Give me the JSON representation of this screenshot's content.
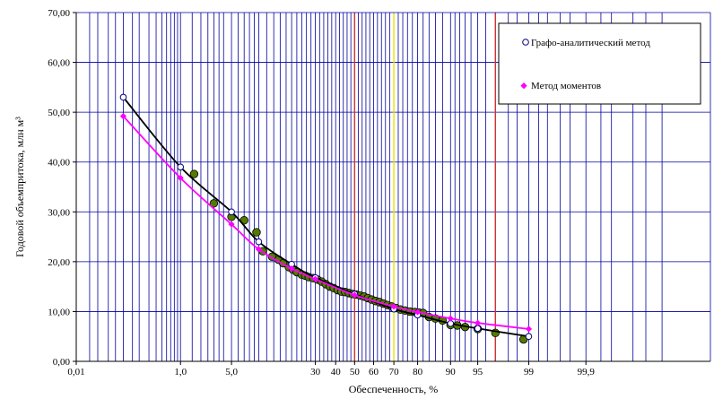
{
  "chart_data": {
    "type": "scatter",
    "xlabel": "Обеспеченность, %",
    "ylabel": "Годовой объемпритока, млн м³",
    "ylim": [
      0,
      70
    ],
    "y_ticks": [
      "0,00",
      "10,00",
      "20,00",
      "30,00",
      "40,00",
      "50,00",
      "60,00",
      "70,00"
    ],
    "x_scale": "probability",
    "x_ticks": [
      {
        "p": 0.01,
        "label": "0,01"
      },
      {
        "p": 1.0,
        "label": "1,0"
      },
      {
        "p": 5.0,
        "label": "5,0"
      },
      {
        "p": 30,
        "label": "30"
      },
      {
        "p": 40,
        "label": "40"
      },
      {
        "p": 50,
        "label": "50"
      },
      {
        "p": 60,
        "label": "60"
      },
      {
        "p": 70,
        "label": "70"
      },
      {
        "p": 80,
        "label": "80"
      },
      {
        "p": 90,
        "label": "90"
      },
      {
        "p": 95,
        "label": "95"
      },
      {
        "p": 99,
        "label": "99"
      },
      {
        "p": 99.9,
        "label": "99,9"
      }
    ],
    "grid": true,
    "special_lines": [
      {
        "p": 50,
        "color": "#cc3333"
      },
      {
        "p": 70,
        "color": "#e6e600"
      },
      {
        "p": 97,
        "color": "#cc3333"
      }
    ],
    "legend_position": "top-right",
    "series": [
      {
        "name": "Графо-аналитический метод",
        "kind": "curve",
        "color": "#000000",
        "marker": "open-circle",
        "marker_color": "#000080",
        "points": [
          [
            0.1,
            53.0
          ],
          [
            1,
            39.0
          ],
          [
            5,
            30.0
          ],
          [
            10,
            24.0
          ],
          [
            20,
            19.5
          ],
          [
            30,
            16.8
          ],
          [
            50,
            13.5
          ],
          [
            70,
            10.5
          ],
          [
            80,
            9.3
          ],
          [
            90,
            7.6
          ],
          [
            95,
            6.6
          ],
          [
            99,
            5.0
          ]
        ]
      },
      {
        "name": "Метод моментов",
        "kind": "curve",
        "color": "#ff00ff",
        "marker": "diamond",
        "marker_color": "#ff00ff",
        "points": [
          [
            0.1,
            49.2
          ],
          [
            1,
            36.8
          ],
          [
            5,
            27.5
          ],
          [
            10,
            22.5
          ],
          [
            20,
            18.6
          ],
          [
            30,
            16.5
          ],
          [
            50,
            13.3
          ],
          [
            70,
            11.0
          ],
          [
            80,
            9.9
          ],
          [
            90,
            8.6
          ],
          [
            95,
            7.7
          ],
          [
            99,
            6.5
          ]
        ]
      },
      {
        "name": "",
        "kind": "points",
        "color": "#557a00",
        "stroke": "#000000",
        "points": [
          [
            1.6,
            37.6
          ],
          [
            3.0,
            31.7
          ],
          [
            5.0,
            29.0
          ],
          [
            7.0,
            28.3
          ],
          [
            9.5,
            25.9
          ],
          [
            11.0,
            22.1
          ],
          [
            13.5,
            21.0
          ],
          [
            15.5,
            20.4
          ],
          [
            17.0,
            19.7
          ],
          [
            19.0,
            18.9
          ],
          [
            20.5,
            18.4
          ],
          [
            22.0,
            17.9
          ],
          [
            24.0,
            17.4
          ],
          [
            25.5,
            17.2
          ],
          [
            27.0,
            16.9
          ],
          [
            29.0,
            16.7
          ],
          [
            31.0,
            16.4
          ],
          [
            33.0,
            16.0
          ],
          [
            35.0,
            15.5
          ],
          [
            37.0,
            15.0
          ],
          [
            39.0,
            14.7
          ],
          [
            41.0,
            14.3
          ],
          [
            43.0,
            14.0
          ],
          [
            45.0,
            13.9
          ],
          [
            47.0,
            13.7
          ],
          [
            49.0,
            13.5
          ],
          [
            51.0,
            13.4
          ],
          [
            53.0,
            13.2
          ],
          [
            55.0,
            13.0
          ],
          [
            57.0,
            12.7
          ],
          [
            59.0,
            12.4
          ],
          [
            61.0,
            12.1
          ],
          [
            63.0,
            11.9
          ],
          [
            65.0,
            11.6
          ],
          [
            67.0,
            11.3
          ],
          [
            69.0,
            11.0
          ],
          [
            71.0,
            10.7
          ],
          [
            73.0,
            10.4
          ],
          [
            75.0,
            10.2
          ],
          [
            77.0,
            10.0
          ],
          [
            79.0,
            9.9
          ],
          [
            80.5,
            9.8
          ],
          [
            82.0,
            9.7
          ],
          [
            84.0,
            8.9
          ],
          [
            86.0,
            8.6
          ],
          [
            88.0,
            8.2
          ],
          [
            90.0,
            7.3
          ],
          [
            91.5,
            7.2
          ],
          [
            93.0,
            6.9
          ],
          [
            95.0,
            6.5
          ],
          [
            97.0,
            5.7
          ],
          [
            98.8,
            4.4
          ]
        ]
      }
    ]
  }
}
